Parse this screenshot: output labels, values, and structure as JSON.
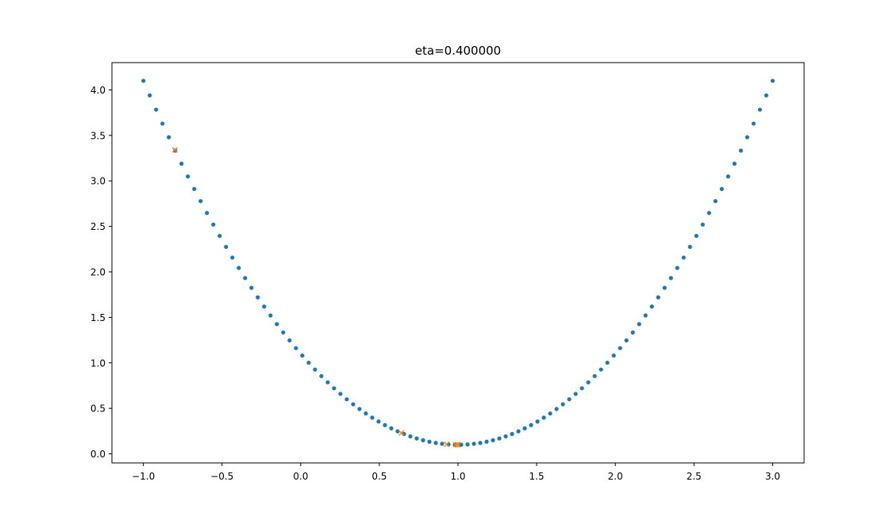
{
  "chart_data": {
    "type": "scatter",
    "title": "eta=0.400000",
    "xlabel": "",
    "ylabel": "",
    "xlim": [
      -1.2,
      3.2
    ],
    "ylim": [
      -0.1,
      4.3
    ],
    "xticks": [
      -1.0,
      -0.5,
      0.0,
      0.5,
      1.0,
      1.5,
      2.0,
      2.5,
      3.0
    ],
    "xtick_labels": [
      "−1.0",
      "−0.5",
      "0.0",
      "0.5",
      "1.0",
      "1.5",
      "2.0",
      "2.5",
      "3.0"
    ],
    "yticks": [
      0.0,
      0.5,
      1.0,
      1.5,
      2.0,
      2.5,
      3.0,
      3.5,
      4.0
    ],
    "ytick_labels": [
      "0.0",
      "0.5",
      "1.0",
      "1.5",
      "2.0",
      "2.5",
      "3.0",
      "3.5",
      "4.0"
    ],
    "grid": false,
    "legend": "none",
    "series": [
      {
        "marker": "dot",
        "color": "#1f77b4",
        "function": "y = (x - 1)^2 + 0.1",
        "x_start": -1.0,
        "x_end": 3.0,
        "n_points": 100
      },
      {
        "marker": "x",
        "color": "#ff7f0e",
        "x": [
          -0.8,
          0.64,
          0.928,
          0.9856,
          0.99712,
          0.999424
        ],
        "y": [
          3.34,
          0.2296,
          0.105184,
          0.100207,
          0.100008,
          0.1
        ]
      }
    ]
  }
}
